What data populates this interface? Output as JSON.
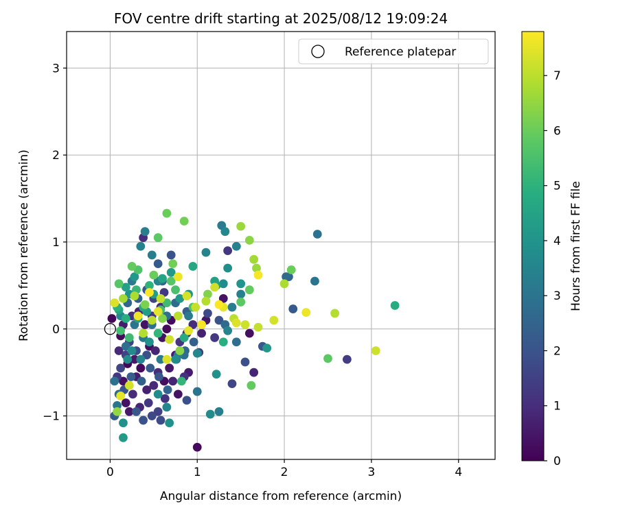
{
  "chart_data": {
    "type": "scatter",
    "title": "FOV centre drift starting at 2025/08/12 19:09:24",
    "xlabel": "Angular distance from reference (arcmin)",
    "ylabel": "Rotation from reference (arcmin)",
    "xlim": [
      -0.5,
      4.42
    ],
    "ylim": [
      -1.5,
      3.42
    ],
    "x_ticks": [
      0,
      1,
      2,
      3,
      4
    ],
    "y_ticks": [
      -1,
      0,
      1,
      2,
      3
    ],
    "x_tick_labels": [
      "0",
      "1",
      "2",
      "3",
      "4"
    ],
    "y_tick_labels": [
      "−1",
      "0",
      "1",
      "2",
      "3"
    ],
    "grid": true,
    "legend": {
      "position": "top-right",
      "entries": [
        {
          "label": "Reference platepar",
          "marker": "hollow-circle",
          "x": 0,
          "y": 0
        }
      ]
    },
    "colorbar": {
      "label": "Hours from first FF file",
      "colormap": "viridis",
      "range": [
        0,
        7.8
      ],
      "ticks": [
        0,
        1,
        2,
        3,
        4,
        5,
        6,
        7
      ],
      "tick_labels": [
        "0",
        "1",
        "2",
        "3",
        "4",
        "5",
        "6",
        "7"
      ]
    },
    "series": [
      {
        "points": [
          [
            0.02,
            0.12,
            0.1
          ],
          [
            0.12,
            -0.08,
            0.2
          ],
          [
            0.15,
            -0.6,
            0.3
          ],
          [
            0.18,
            -0.85,
            0.4
          ],
          [
            0.22,
            -0.95,
            0.5
          ],
          [
            0.3,
            -0.55,
            0.6
          ],
          [
            0.35,
            -0.45,
            0.2
          ],
          [
            0.42,
            -0.7,
            0.7
          ],
          [
            0.5,
            -0.65,
            0.9
          ],
          [
            0.55,
            -0.5,
            1.0
          ],
          [
            0.62,
            -0.6,
            0.3
          ],
          [
            0.68,
            -0.45,
            0.5
          ],
          [
            0.72,
            -0.6,
            0.8
          ],
          [
            0.78,
            -0.75,
            0.4
          ],
          [
            0.85,
            -0.55,
            1.1
          ],
          [
            0.9,
            -0.5,
            0.6
          ],
          [
            1.0,
            -1.36,
            0.2
          ],
          [
            0.38,
            1.05,
            1.0
          ],
          [
            0.1,
            -0.25,
            0.9
          ],
          [
            0.2,
            -0.4,
            0.1
          ],
          [
            0.28,
            -0.35,
            0.5
          ],
          [
            0.45,
            -0.2,
            0.3
          ],
          [
            0.52,
            -0.25,
            0.8
          ],
          [
            0.6,
            -0.1,
            0.4
          ],
          [
            0.65,
            0.0,
            0.2
          ],
          [
            0.75,
            -0.3,
            0.6
          ],
          [
            0.8,
            -0.15,
            1.2
          ],
          [
            0.88,
            -0.05,
            0.9
          ],
          [
            0.95,
            0.05,
            1.0
          ],
          [
            1.05,
            -0.05,
            0.7
          ],
          [
            1.1,
            0.1,
            0.5
          ],
          [
            1.3,
            0.35,
            0.4
          ],
          [
            1.35,
            0.9,
            1.2
          ],
          [
            1.6,
            -0.05,
            0.3
          ],
          [
            1.65,
            -0.5,
            0.8
          ],
          [
            2.72,
            -0.35,
            1.4
          ],
          [
            0.15,
            0.05,
            0.6
          ],
          [
            0.25,
            0.15,
            1.1
          ],
          [
            0.33,
            0.2,
            0.7
          ],
          [
            0.4,
            0.05,
            0.4
          ],
          [
            0.48,
            0.15,
            1.3
          ],
          [
            0.58,
            0.25,
            0.9
          ],
          [
            0.7,
            0.1,
            0.2
          ],
          [
            0.08,
            -0.55,
            1.3
          ],
          [
            0.18,
            -0.3,
            1.5
          ],
          [
            0.26,
            -0.75,
            1.0
          ],
          [
            0.34,
            -0.9,
            0.8
          ],
          [
            0.44,
            -0.85,
            1.2
          ],
          [
            0.55,
            -0.95,
            1.5
          ],
          [
            0.63,
            -0.8,
            1.1
          ],
          [
            0.5,
            0.35,
            1.6
          ],
          [
            0.62,
            0.42,
            1.3
          ],
          [
            1.4,
            -0.63,
            1.6
          ],
          [
            1.02,
            -0.27,
            1.4
          ],
          [
            1.12,
            0.18,
            1.7
          ],
          [
            1.2,
            -0.1,
            1.3
          ],
          [
            0.12,
            -0.45,
            1.6
          ],
          [
            0.22,
            -0.15,
            1.5
          ],
          [
            0.3,
            -0.25,
            1.8
          ],
          [
            0.42,
            -0.3,
            1.9
          ],
          [
            0.48,
            -1.0,
            1.7
          ],
          [
            0.58,
            -1.05,
            1.8
          ],
          [
            0.38,
            -1.05,
            2.0
          ],
          [
            0.88,
            -0.82,
            1.9
          ],
          [
            0.3,
            -0.95,
            2.1
          ],
          [
            0.05,
            -1.0,
            2.2
          ],
          [
            0.16,
            -0.7,
            2.0
          ],
          [
            0.24,
            -0.55,
            2.3
          ],
          [
            0.36,
            -0.6,
            2.4
          ],
          [
            0.46,
            -0.45,
            2.2
          ],
          [
            0.56,
            -0.55,
            2.1
          ],
          [
            0.66,
            -0.7,
            2.5
          ],
          [
            0.76,
            -0.35,
            2.3
          ],
          [
            0.86,
            -0.25,
            2.6
          ],
          [
            0.96,
            -0.15,
            2.4
          ],
          [
            0.7,
            0.85,
            2.0
          ],
          [
            0.55,
            0.75,
            2.2
          ],
          [
            0.42,
            0.45,
            2.1
          ],
          [
            0.32,
            0.35,
            2.4
          ],
          [
            0.2,
            0.3,
            2.6
          ],
          [
            0.6,
            0.55,
            2.5
          ],
          [
            0.88,
            0.2,
            2.3
          ],
          [
            1.25,
            0.1,
            2.0
          ],
          [
            1.45,
            -0.15,
            2.8
          ],
          [
            1.55,
            -0.38,
            1.9
          ],
          [
            1.75,
            -0.2,
            2.1
          ],
          [
            2.1,
            0.23,
            2.2
          ],
          [
            2.05,
            0.6,
            2.5
          ],
          [
            1.32,
            0.05,
            2.7
          ],
          [
            0.75,
            0.3,
            2.7
          ],
          [
            0.85,
            -0.3,
            2.8
          ],
          [
            0.65,
            0.15,
            2.9
          ],
          [
            0.1,
            -0.75,
            2.7
          ],
          [
            0.05,
            -0.6,
            2.9
          ],
          [
            0.08,
            -0.88,
            3.0
          ],
          [
            0.18,
            -0.2,
            2.8
          ],
          [
            0.28,
            0.05,
            3.0
          ],
          [
            0.38,
            -0.1,
            3.1
          ],
          [
            0.48,
            0.05,
            2.9
          ],
          [
            0.58,
            -0.35,
            3.2
          ],
          [
            1.0,
            -0.72,
            3.0
          ],
          [
            1.25,
            -0.95,
            3.3
          ],
          [
            1.28,
            1.19,
            3.2
          ],
          [
            2.35,
            0.55,
            3.0
          ],
          [
            2.38,
            1.09,
            2.9
          ],
          [
            2.02,
            0.6,
            2.7
          ],
          [
            1.5,
            0.4,
            3.4
          ],
          [
            1.4,
            0.25,
            3.3
          ],
          [
            1.35,
            -0.02,
            3.5
          ],
          [
            0.25,
            0.55,
            3.2
          ],
          [
            0.35,
            0.95,
            3.4
          ],
          [
            0.4,
            1.12,
            3.3
          ],
          [
            0.65,
            -0.9,
            3.6
          ],
          [
            0.78,
            -0.3,
            3.3
          ],
          [
            0.9,
            0.15,
            3.2
          ],
          [
            1.05,
            0.05,
            3.5
          ],
          [
            1.3,
            0.52,
            3.7
          ],
          [
            1.35,
            0.7,
            3.8
          ],
          [
            1.45,
            0.95,
            3.4
          ],
          [
            1.32,
            1.12,
            3.6
          ],
          [
            1.1,
            0.88,
            3.5
          ],
          [
            0.48,
            0.85,
            3.3
          ],
          [
            0.55,
            0.55,
            3.5
          ],
          [
            0.12,
            0.15,
            3.6
          ],
          [
            0.2,
            -0.35,
            3.8
          ],
          [
            0.15,
            -1.08,
            3.9
          ],
          [
            0.25,
            -0.25,
            3.7
          ],
          [
            0.35,
            -0.35,
            3.5
          ],
          [
            0.45,
            -0.15,
            3.9
          ],
          [
            0.55,
            -0.75,
            3.7
          ],
          [
            0.68,
            -1.08,
            3.9
          ],
          [
            0.75,
            -0.35,
            3.8
          ],
          [
            1.0,
            -0.28,
            3.6
          ],
          [
            1.22,
            -0.52,
            3.9
          ],
          [
            1.15,
            -0.98,
            3.7
          ],
          [
            1.8,
            -0.22,
            4.1
          ],
          [
            1.5,
            0.52,
            4.0
          ],
          [
            1.22,
            0.5,
            4.2
          ],
          [
            0.9,
            0.4,
            4.0
          ],
          [
            0.8,
            0.35,
            4.1
          ],
          [
            0.42,
            0.2,
            4.3
          ],
          [
            0.32,
            0.12,
            4.4
          ],
          [
            0.22,
            0.4,
            4.0
          ],
          [
            0.15,
            -1.25,
            4.2
          ],
          [
            0.1,
            0.22,
            4.5
          ],
          [
            0.18,
            0.48,
            4.4
          ],
          [
            0.28,
            0.6,
            4.1
          ],
          [
            0.38,
            0.25,
            4.6
          ],
          [
            0.5,
            0.4,
            4.3
          ],
          [
            0.6,
            0.58,
            4.5
          ],
          [
            0.7,
            0.65,
            4.2
          ],
          [
            0.95,
            0.72,
            4.6
          ],
          [
            1.2,
            0.55,
            4.4
          ],
          [
            3.27,
            0.27,
            4.8
          ],
          [
            1.3,
            -0.15,
            4.9
          ],
          [
            0.85,
            -0.1,
            4.7
          ],
          [
            0.08,
            0.25,
            5.0
          ],
          [
            0.18,
            0.12,
            4.9
          ],
          [
            0.3,
            0.45,
            5.2
          ],
          [
            0.45,
            0.5,
            5.0
          ],
          [
            0.55,
            -0.05,
            5.1
          ],
          [
            0.65,
            0.3,
            5.3
          ],
          [
            0.75,
            0.45,
            5.5
          ],
          [
            0.82,
            -0.6,
            5.1
          ],
          [
            0.12,
            -0.02,
            5.4
          ],
          [
            0.22,
            -0.1,
            5.3
          ],
          [
            0.32,
            0.68,
            5.6
          ],
          [
            0.58,
            0.22,
            5.4
          ],
          [
            0.7,
            0.55,
            5.7
          ],
          [
            0.95,
            0.25,
            5.6
          ],
          [
            1.62,
            -0.65,
            5.9
          ],
          [
            2.5,
            -0.34,
            5.8
          ],
          [
            2.08,
            0.68,
            6.0
          ],
          [
            1.6,
            0.45,
            5.9
          ],
          [
            1.5,
            0.31,
            5.8
          ],
          [
            0.1,
            0.52,
            5.7
          ],
          [
            0.25,
            0.72,
            5.9
          ],
          [
            0.55,
            1.05,
            5.8
          ],
          [
            0.65,
            1.33,
            6.0
          ],
          [
            0.85,
            1.24,
            6.1
          ],
          [
            0.4,
            0.28,
            6.2
          ],
          [
            0.5,
            0.62,
            6.0
          ],
          [
            0.6,
            0.12,
            6.3
          ],
          [
            0.72,
            0.75,
            6.1
          ],
          [
            0.8,
            -0.25,
            6.4
          ],
          [
            1.12,
            0.4,
            6.3
          ],
          [
            1.5,
            1.18,
            6.6
          ],
          [
            1.6,
            1.02,
            6.4
          ],
          [
            1.65,
            0.8,
            6.7
          ],
          [
            1.68,
            0.7,
            6.6
          ],
          [
            2.0,
            0.52,
            6.8
          ],
          [
            2.58,
            0.18,
            6.9
          ],
          [
            0.08,
            -0.95,
            6.5
          ],
          [
            0.15,
            0.35,
            6.7
          ],
          [
            0.28,
            0.38,
            6.8
          ],
          [
            0.38,
            -0.05,
            6.9
          ],
          [
            0.48,
            0.1,
            7.0
          ],
          [
            0.58,
            0.35,
            7.1
          ],
          [
            0.68,
            -0.12,
            7.2
          ],
          [
            0.78,
            0.15,
            7.0
          ],
          [
            0.88,
            0.38,
            7.3
          ],
          [
            0.98,
            0.25,
            7.1
          ],
          [
            1.1,
            0.32,
            6.9
          ],
          [
            1.2,
            0.48,
            7.2
          ],
          [
            1.42,
            0.12,
            7.0
          ],
          [
            1.55,
            0.05,
            7.2
          ],
          [
            1.7,
            0.02,
            7.1
          ],
          [
            1.88,
            0.1,
            7.3
          ],
          [
            3.05,
            -0.25,
            7.2
          ],
          [
            2.25,
            0.19,
            7.6
          ],
          [
            1.7,
            0.62,
            7.7
          ],
          [
            1.3,
            0.25,
            7.5
          ],
          [
            0.05,
            0.3,
            7.4
          ],
          [
            0.12,
            -0.77,
            7.5
          ],
          [
            0.22,
            -0.65,
            7.3
          ],
          [
            0.32,
            0.15,
            7.6
          ],
          [
            0.45,
            0.42,
            7.8
          ],
          [
            0.55,
            0.2,
            7.5
          ],
          [
            0.65,
            -0.35,
            7.4
          ],
          [
            0.78,
            0.6,
            7.6
          ],
          [
            0.9,
            -0.02,
            7.5
          ],
          [
            1.05,
            0.05,
            7.7
          ],
          [
            1.25,
            0.28,
            7.8
          ],
          [
            1.45,
            0.07,
            7.4
          ]
        ],
        "point_fields": [
          "x",
          "y",
          "hours"
        ]
      }
    ]
  }
}
